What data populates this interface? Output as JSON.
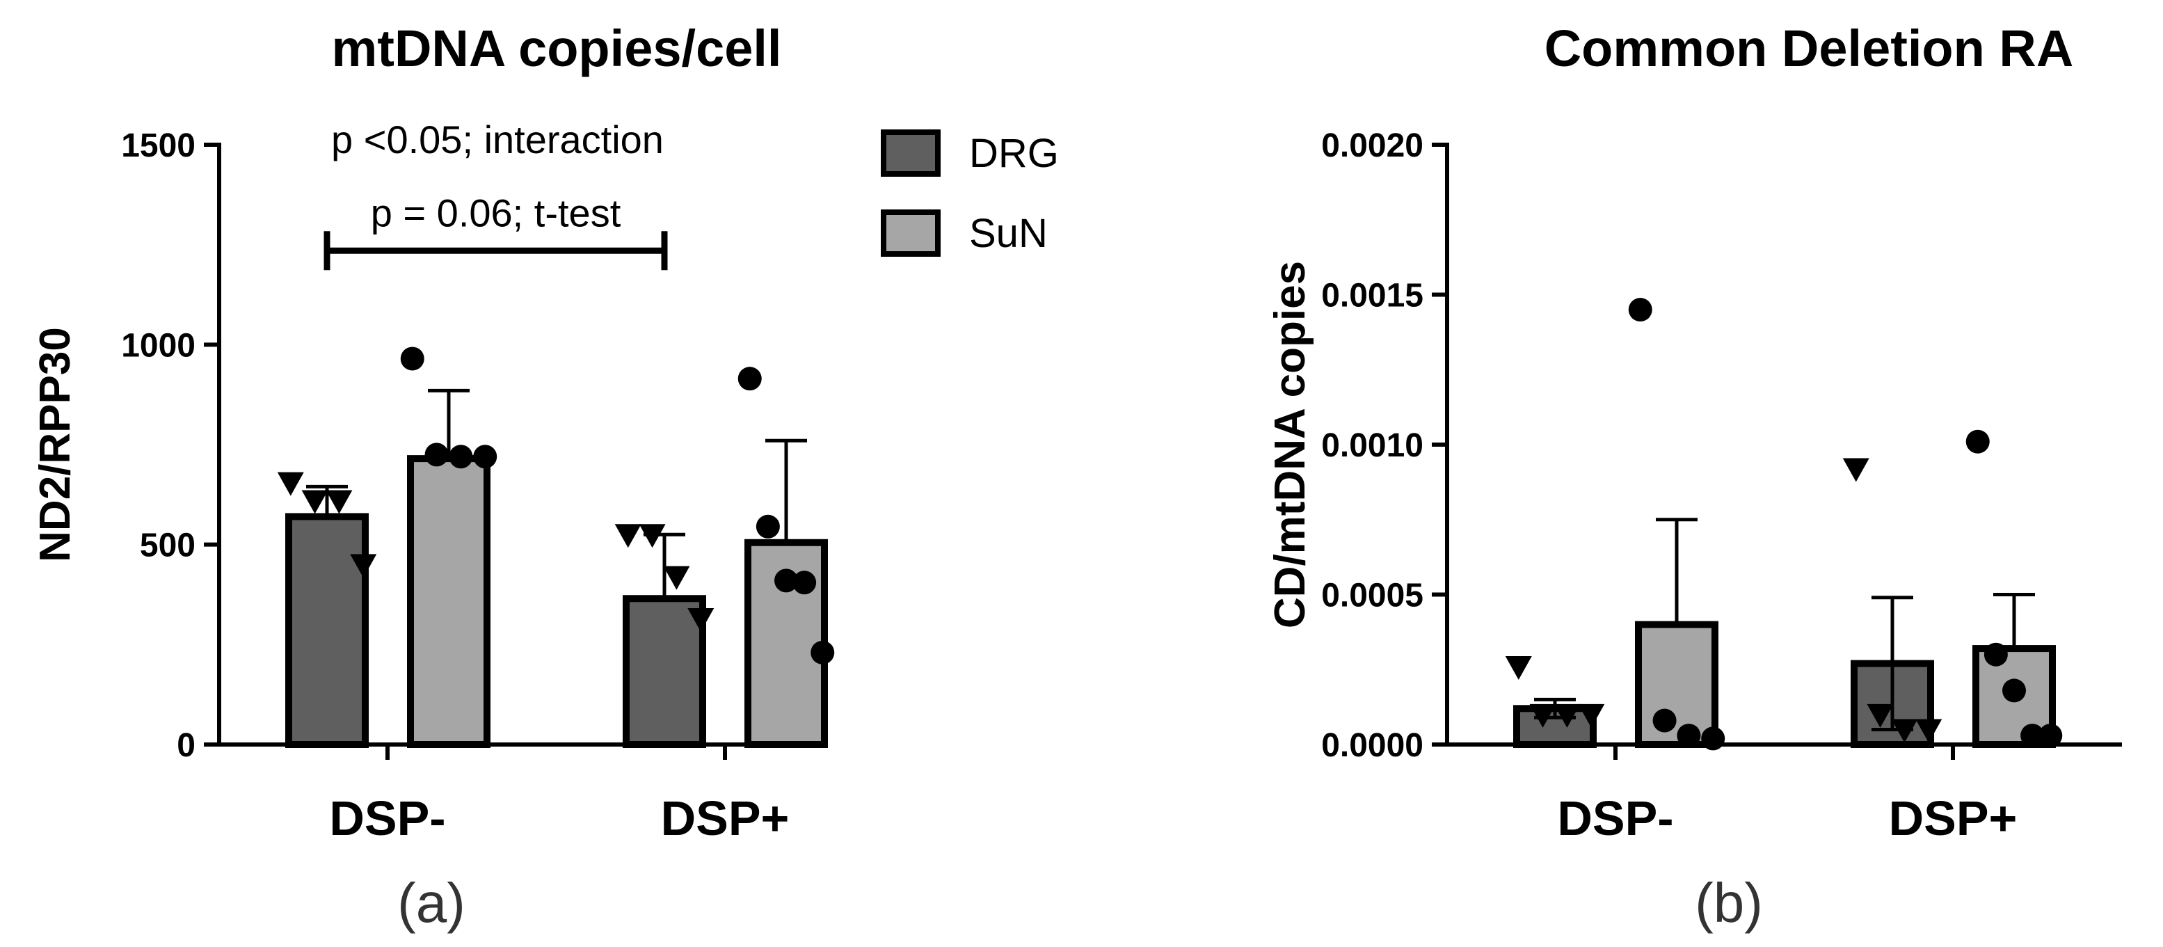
{
  "chart_data": [
    {
      "type": "bar",
      "panel_label": "(a)",
      "title": "mtDNA copies/cell",
      "ylabel": "ND2/RPP30",
      "ylim": [
        0,
        1500
      ],
      "yticks": [
        0,
        500,
        1000,
        1500
      ],
      "ytick_labels": [
        "0",
        "500",
        "1000",
        "1500"
      ],
      "categories": [
        "DSP-",
        "DSP+"
      ],
      "legend_position": "top-right",
      "colors": {
        "DRG": "#5f5f5f",
        "SuN": "#a6a6a6"
      },
      "series": [
        {
          "name": "DRG",
          "marker": "triangle-down",
          "values": [
            570,
            365
          ],
          "error_up": [
            645,
            525
          ],
          "points": [
            [
              655,
              610,
              610,
              450
            ],
            [
              525,
              525,
              420,
              315
            ]
          ]
        },
        {
          "name": "SuN",
          "marker": "circle",
          "values": [
            715,
            505
          ],
          "error_up": [
            885,
            760
          ],
          "points": [
            [
              965,
              725,
              720,
              720
            ],
            [
              915,
              545,
              410,
              405,
              230
            ]
          ]
        }
      ],
      "annotations": [
        {
          "text": "p <0.05; interaction"
        },
        {
          "text": "p = 0.06; t-test",
          "from": "DSP-",
          "to": "DSP+",
          "y": 1235
        }
      ]
    },
    {
      "type": "bar",
      "panel_label": "(b)",
      "title": "Common Deletion RA",
      "ylabel": "CD/mtDNA copies",
      "ylim": [
        0,
        0.002
      ],
      "yticks": [
        0,
        0.0005,
        0.001,
        0.0015,
        0.002
      ],
      "ytick_labels": [
        "0.0000",
        "0.0005",
        "0.0010",
        "0.0015",
        "0.0020"
      ],
      "categories": [
        "DSP-",
        "DSP+"
      ],
      "colors": {
        "DRG": "#5f5f5f",
        "SuN": "#a6a6a6"
      },
      "series": [
        {
          "name": "DRG",
          "marker": "triangle-down",
          "values": [
            0.00012,
            0.00027
          ],
          "error_up": [
            0.00015,
            0.00049
          ],
          "error_down": [
            9e-05,
            5e-05
          ],
          "points": [
            [
              0.00026,
              0.0001,
              0.0001,
              0.0001
            ],
            [
              0.00092,
              0.0001,
              5e-05,
              5e-05
            ]
          ]
        },
        {
          "name": "SuN",
          "marker": "circle",
          "values": [
            0.0004,
            0.00032
          ],
          "error_up": [
            0.00075,
            0.0005
          ],
          "points": [
            [
              0.00145,
              8e-05,
              3e-05,
              2e-05
            ],
            [
              0.00101,
              0.0003,
              0.00018,
              3e-05,
              3e-05
            ]
          ]
        }
      ]
    }
  ]
}
